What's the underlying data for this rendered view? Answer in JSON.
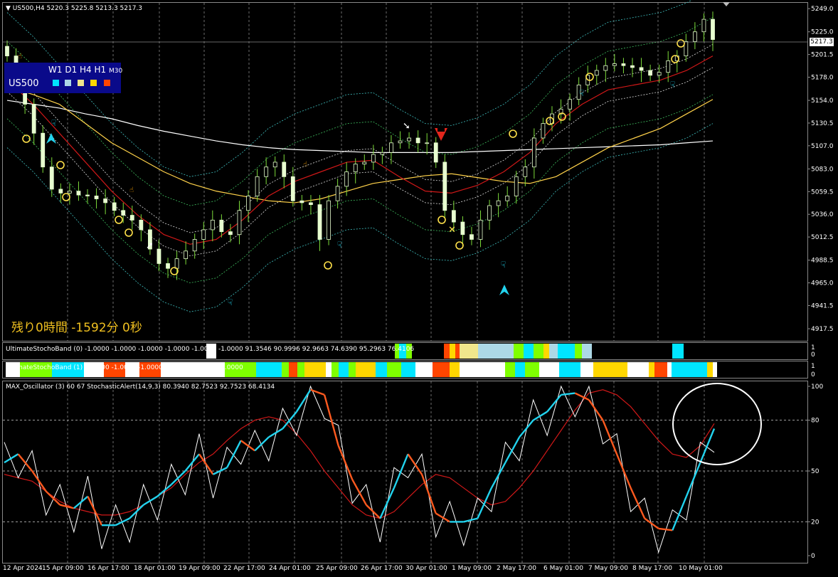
{
  "main": {
    "title": "US500,H4  5220.3 5225.8 5213.3 5217.3",
    "current_price": "5217.3",
    "timer_text": "残り0時間 -1592分 0秒",
    "mtf_panel": {
      "symbol": "US500",
      "timeframes": [
        "W1",
        "D1",
        "H4",
        "H1"
      ],
      "timeframe_small": "M30",
      "square_colors": [
        "#00e5ff",
        "#add8e6",
        "#f0e68c",
        "#ffd700",
        "#ff4500"
      ]
    }
  },
  "band1": {
    "title": "UltimateStochoBand (0) -1.0000 -1.0000 -1.0000 -1.0000 -1.0000 -1.0000 91.3546 90.9996 92.9663 74.6390 95.2963 76.4106"
  },
  "band2": {
    "title": "UltimateStochoBand (1) -1.0000 -1.0000 -1.0000 -1.0000 -1.0000 -1.0000"
  },
  "osc": {
    "title": "MAX_Oscillator (3) 60 67  StochasticAlert(14,9,3) 80.3940 82.7523 92.7523 68.4134"
  },
  "chart_data": [
    {
      "type": "candlestick",
      "title": "US500,H4",
      "ylim": [
        4905,
        5255
      ],
      "y_ticks": [
        "5249.0",
        "5225.0",
        "5201.5",
        "5178.0",
        "5154.0",
        "5130.5",
        "5107.0",
        "5083.0",
        "5059.5",
        "5036.0",
        "5012.5",
        "4988.5",
        "4965.0",
        "4941.5",
        "4917.5"
      ],
      "x_ticks": [
        "12 Apr 2024",
        "15 Apr 09:00",
        "16 Apr 17:00",
        "18 Apr 01:00",
        "19 Apr 09:00",
        "22 Apr 17:00",
        "24 Apr 01:00",
        "25 Apr 09:00",
        "26 Apr 17:00",
        "30 Apr 01:00",
        "1 May 09:00",
        "2 May 17:00",
        "6 May 01:00",
        "7 May 09:00",
        "8 May 17:00",
        "10 May 01:00"
      ],
      "close": [
        5200,
        5182,
        5150,
        5120,
        5085,
        5062,
        5058,
        5060,
        5056,
        5055,
        5052,
        5048,
        5040,
        5035,
        5030,
        5020,
        5000,
        4985,
        4980,
        4990,
        4998,
        5010,
        5020,
        5030,
        5018,
        5015,
        5040,
        5055,
        5075,
        5085,
        5090,
        5075,
        5050,
        5048,
        5046,
        5010,
        5050,
        5065,
        5080,
        5088,
        5090,
        5098,
        5100,
        5110,
        5112,
        5115,
        5110,
        5110,
        5090,
        5040,
        5028,
        5015,
        5010,
        5030,
        5045,
        5050,
        5055,
        5075,
        5085,
        5115,
        5130,
        5140,
        5145,
        5155,
        5170,
        5180,
        5185,
        5190,
        5192,
        5190,
        5188,
        5185,
        5180,
        5183,
        5195,
        5200,
        5215,
        5225,
        5238,
        5217
      ],
      "series": [
        {
          "name": "",
          "color": "#ffffff",
          "values": [
            5154,
            5150,
            5146,
            5140,
            5135,
            5128,
            5122,
            5117,
            5112,
            5108,
            5105,
            5103,
            5102,
            5101,
            5100,
            5100,
            5100,
            5100,
            5101,
            5102,
            5103,
            5104,
            5105,
            5106,
            5107,
            5108,
            5110,
            5112
          ]
        },
        {
          "name": "",
          "color": "#ffd24a",
          "values": [
            5168,
            5160,
            5150,
            5130,
            5110,
            5095,
            5080,
            5068,
            5060,
            5055,
            5050,
            5048,
            5052,
            5060,
            5068,
            5072,
            5076,
            5078,
            5074,
            5070,
            5068,
            5075,
            5090,
            5105,
            5115,
            5125,
            5140,
            5155
          ]
        },
        {
          "name": "",
          "color": "#d01818",
          "values": [
            5175,
            5150,
            5120,
            5090,
            5060,
            5035,
            5015,
            5005,
            5010,
            5030,
            5055,
            5070,
            5080,
            5090,
            5092,
            5075,
            5060,
            5058,
            5066,
            5080,
            5100,
            5130,
            5150,
            5165,
            5170,
            5175,
            5185,
            5200
          ]
        }
      ]
    },
    {
      "type": "line",
      "title": "MAX_Oscillator (3) 60 67  StochasticAlert(14,9,3)",
      "ylim": [
        0,
        100
      ],
      "y_ticks": [
        "100",
        "80",
        "50",
        "20",
        "0"
      ],
      "values_main": [
        55,
        60,
        50,
        38,
        30,
        28,
        35,
        18,
        18,
        22,
        30,
        35,
        42,
        50,
        60,
        48,
        52,
        68,
        62,
        70,
        75,
        85,
        98,
        95,
        65,
        45,
        30,
        22,
        40,
        60,
        48,
        25,
        20,
        20,
        22,
        40,
        55,
        70,
        80,
        85,
        95,
        96,
        92,
        80,
        60,
        40,
        22,
        16,
        15,
        35,
        55,
        75
      ],
      "values_signal": [
        48,
        46,
        44,
        38,
        32,
        28,
        26,
        24,
        24,
        26,
        30,
        35,
        40,
        48,
        55,
        60,
        68,
        75,
        80,
        82,
        80,
        72,
        62,
        50,
        40,
        30,
        24,
        22,
        26,
        34,
        42,
        48,
        46,
        40,
        34,
        30,
        32,
        40,
        50,
        62,
        74,
        86,
        96,
        98,
        95,
        88,
        78,
        68,
        60,
        58,
        65,
        78
      ]
    }
  ]
}
